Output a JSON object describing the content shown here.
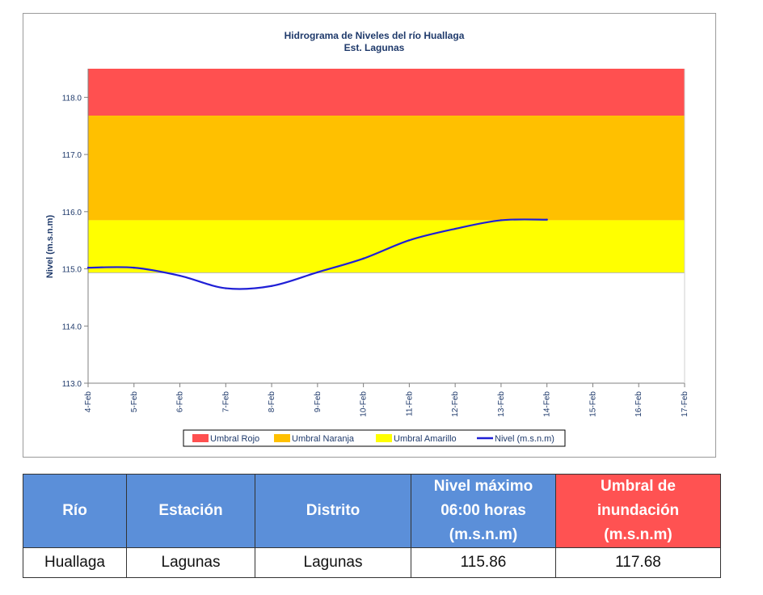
{
  "chart_data": {
    "type": "line",
    "title": "Hidrograma de Niveles del río Huallaga",
    "subtitle": "Est. Lagunas",
    "ylabel": "Nivel (m.s.n.m)",
    "xlabel": "",
    "ylim": [
      113.0,
      118.5
    ],
    "y_ticks": [
      "113.0",
      "114.0",
      "115.0",
      "116.0",
      "117.0",
      "118.0"
    ],
    "categories": [
      "4-Feb",
      "5-Feb",
      "6-Feb",
      "7-Feb",
      "8-Feb",
      "9-Feb",
      "10-Feb",
      "11-Feb",
      "12-Feb",
      "13-Feb",
      "14-Feb",
      "15-Feb",
      "16-Feb",
      "17-Feb"
    ],
    "bands": [
      {
        "name": "Umbral Rojo",
        "from": 117.68,
        "to": 118.5,
        "color": "#ff5050"
      },
      {
        "name": "Umbral Naranja",
        "from": 115.85,
        "to": 117.68,
        "color": "#ffc000"
      },
      {
        "name": "Umbral Amarillo",
        "from": 114.93,
        "to": 115.85,
        "color": "#ffff00"
      }
    ],
    "series": [
      {
        "name": "Nivel (m.s.n.m)",
        "color": "#1f1fd6",
        "x": [
          0,
          1,
          2,
          3,
          4,
          5,
          6,
          7,
          8,
          9,
          10
        ],
        "values": [
          115.02,
          115.02,
          114.88,
          114.66,
          114.7,
          114.94,
          115.18,
          115.5,
          115.7,
          115.85,
          115.86
        ]
      }
    ],
    "legend": [
      "Umbral Rojo",
      "Umbral Naranja",
      "Umbral Amarillo",
      "Nivel (m.s.n.m)"
    ],
    "legend_position": "bottom",
    "grid": false
  },
  "table": {
    "headers": [
      {
        "text": [
          "Río"
        ],
        "color": "#5b8fd9"
      },
      {
        "text": [
          "Estación"
        ],
        "color": "#5b8fd9"
      },
      {
        "text": [
          "Distrito"
        ],
        "color": "#5b8fd9"
      },
      {
        "text": [
          "Nivel máximo",
          "06:00 horas",
          "(m.s.n.m)"
        ],
        "color": "#5b8fd9"
      },
      {
        "text": [
          "Umbral de",
          "inundación",
          "(m.s.n.m)"
        ],
        "color": "#ff5252"
      }
    ],
    "row": [
      "Huallaga",
      "Lagunas",
      "Lagunas",
      "115.86",
      "117.68"
    ]
  }
}
